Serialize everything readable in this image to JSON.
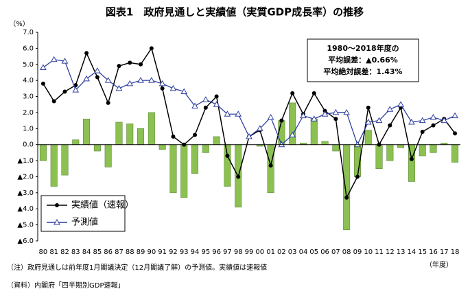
{
  "chart_data": {
    "type": "bar-line",
    "title": "図表1　政府見通しと実績値（実質GDP成長率）の推移",
    "y_unit": "（%）",
    "x_unit": "（年度）",
    "annotation": [
      "1980～2018年度の",
      "平均誤差：▲0.66%",
      "平均絶対誤差：1.43%"
    ],
    "notes": [
      "（注）政府見通しは前年度1月閣議決定（12月閣議了解）の予測値。実績値は速報値",
      "（資料）内閣府「四半期別GDP速報」"
    ],
    "categories": [
      "80",
      "81",
      "82",
      "83",
      "84",
      "85",
      "86",
      "87",
      "88",
      "89",
      "90",
      "91",
      "92",
      "93",
      "94",
      "95",
      "96",
      "97",
      "98",
      "99",
      "00",
      "01",
      "02",
      "03",
      "04",
      "05",
      "06",
      "07",
      "08",
      "09",
      "10",
      "11",
      "12",
      "13",
      "14",
      "15",
      "16",
      "17",
      "18"
    ],
    "series": [
      {
        "type": "bar",
        "color": "#8cc152",
        "values": [
          -1.0,
          -2.6,
          -1.9,
          0.3,
          1.6,
          -0.4,
          -1.4,
          1.4,
          1.3,
          1.0,
          2.0,
          -0.3,
          -3.0,
          -3.3,
          -1.8,
          -0.5,
          0.5,
          -2.6,
          -3.9,
          0.0,
          -0.1,
          -3.0,
          1.5,
          2.6,
          0.1,
          1.6,
          0.2,
          -0.4,
          -5.3,
          -2.0,
          0.9,
          -1.5,
          -1.0,
          -0.2,
          -2.3,
          -0.7,
          -0.5,
          0.1,
          -1.1
        ]
      },
      {
        "type": "line",
        "name": "実績値（速報）",
        "color": "#000000",
        "marker": "circle",
        "values": [
          3.8,
          2.7,
          3.3,
          3.7,
          5.7,
          4.2,
          2.6,
          4.9,
          5.1,
          5.0,
          6.0,
          3.5,
          0.5,
          0.0,
          0.6,
          2.3,
          3.0,
          -0.7,
          -2.0,
          0.5,
          0.9,
          -1.3,
          1.5,
          3.2,
          1.9,
          3.2,
          2.1,
          1.6,
          -3.3,
          -2.0,
          2.3,
          0.0,
          1.2,
          2.3,
          -0.9,
          0.8,
          1.2,
          1.6,
          0.7
        ]
      },
      {
        "type": "line",
        "name": "予測値",
        "color": "#2e3f9e",
        "marker": "triangle",
        "values": [
          4.8,
          5.3,
          5.2,
          3.4,
          4.1,
          4.6,
          4.0,
          3.5,
          3.8,
          4.0,
          4.0,
          3.8,
          3.5,
          3.3,
          2.4,
          2.8,
          2.5,
          1.9,
          1.9,
          0.5,
          1.0,
          1.7,
          0.0,
          0.6,
          1.8,
          1.6,
          1.9,
          2.0,
          2.0,
          0.0,
          1.4,
          1.5,
          2.2,
          2.5,
          1.4,
          1.5,
          1.7,
          1.5,
          1.8
        ]
      }
    ],
    "ylim": [
      -6,
      7
    ],
    "yticks": [
      {
        "value": 7,
        "label": "7.0"
      },
      {
        "value": 6,
        "label": "6.0"
      },
      {
        "value": 5,
        "label": "5.0"
      },
      {
        "value": 4,
        "label": "4.0"
      },
      {
        "value": 3,
        "label": "3.0"
      },
      {
        "value": 2,
        "label": "2.0"
      },
      {
        "value": 1,
        "label": "1.0"
      },
      {
        "value": 0,
        "label": "0.0"
      },
      {
        "value": -1,
        "label": "▲1.0"
      },
      {
        "value": -2,
        "label": "▲2.0"
      },
      {
        "value": -3,
        "label": "▲3.0"
      },
      {
        "value": -4,
        "label": "▲4.0"
      },
      {
        "value": -5,
        "label": "▲5.0"
      },
      {
        "value": -6,
        "label": "▲6.0"
      }
    ],
    "grid": false
  }
}
